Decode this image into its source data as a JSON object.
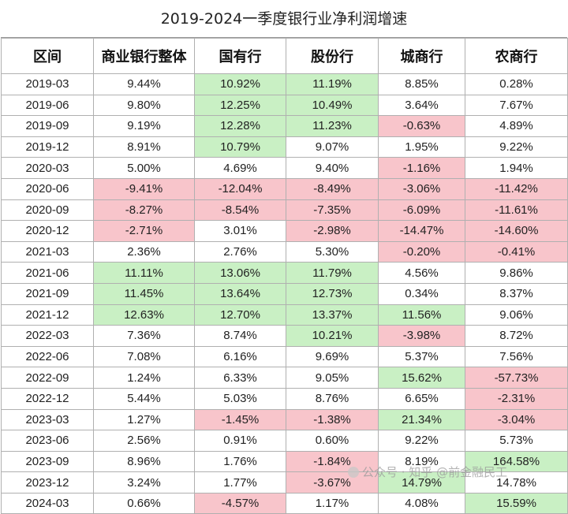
{
  "title": "2019-2024一季度银行业净利润增速",
  "headers": [
    "区间",
    "商业银行整体",
    "国有行",
    "股份行",
    "城商行",
    "农商行"
  ],
  "rows": [
    {
      "label": "2019-03",
      "cells": [
        {
          "v": "9.44%",
          "c": ""
        },
        {
          "v": "10.92%",
          "c": "g"
        },
        {
          "v": "11.19%",
          "c": "g"
        },
        {
          "v": "8.85%",
          "c": ""
        },
        {
          "v": "0.28%",
          "c": ""
        }
      ]
    },
    {
      "label": "2019-06",
      "cells": [
        {
          "v": "9.80%",
          "c": ""
        },
        {
          "v": "12.25%",
          "c": "g"
        },
        {
          "v": "10.49%",
          "c": "g"
        },
        {
          "v": "3.64%",
          "c": ""
        },
        {
          "v": "7.67%",
          "c": ""
        }
      ]
    },
    {
      "label": "2019-09",
      "cells": [
        {
          "v": "9.19%",
          "c": ""
        },
        {
          "v": "12.28%",
          "c": "g"
        },
        {
          "v": "11.23%",
          "c": "g"
        },
        {
          "v": "-0.63%",
          "c": "r"
        },
        {
          "v": "4.89%",
          "c": ""
        }
      ]
    },
    {
      "label": "2019-12",
      "cells": [
        {
          "v": "8.91%",
          "c": ""
        },
        {
          "v": "10.79%",
          "c": "g"
        },
        {
          "v": "9.07%",
          "c": ""
        },
        {
          "v": "1.95%",
          "c": ""
        },
        {
          "v": "9.22%",
          "c": ""
        }
      ]
    },
    {
      "label": "2020-03",
      "cells": [
        {
          "v": "5.00%",
          "c": ""
        },
        {
          "v": "4.69%",
          "c": ""
        },
        {
          "v": "9.40%",
          "c": ""
        },
        {
          "v": "-1.16%",
          "c": "r"
        },
        {
          "v": "1.94%",
          "c": ""
        }
      ]
    },
    {
      "label": "2020-06",
      "cells": [
        {
          "v": "-9.41%",
          "c": "r"
        },
        {
          "v": "-12.04%",
          "c": "r"
        },
        {
          "v": "-8.49%",
          "c": "r"
        },
        {
          "v": "-3.06%",
          "c": "r"
        },
        {
          "v": "-11.42%",
          "c": "r"
        }
      ]
    },
    {
      "label": "2020-09",
      "cells": [
        {
          "v": "-8.27%",
          "c": "r"
        },
        {
          "v": "-8.54%",
          "c": "r"
        },
        {
          "v": "-7.35%",
          "c": "r"
        },
        {
          "v": "-6.09%",
          "c": "r"
        },
        {
          "v": "-11.61%",
          "c": "r"
        }
      ]
    },
    {
      "label": "2020-12",
      "cells": [
        {
          "v": "-2.71%",
          "c": "r"
        },
        {
          "v": "3.01%",
          "c": ""
        },
        {
          "v": "-2.98%",
          "c": "r"
        },
        {
          "v": "-14.47%",
          "c": "r"
        },
        {
          "v": "-14.60%",
          "c": "r"
        }
      ]
    },
    {
      "label": "2021-03",
      "cells": [
        {
          "v": "2.36%",
          "c": ""
        },
        {
          "v": "2.76%",
          "c": ""
        },
        {
          "v": "5.30%",
          "c": ""
        },
        {
          "v": "-0.20%",
          "c": "r"
        },
        {
          "v": "-0.41%",
          "c": "r"
        }
      ]
    },
    {
      "label": "2021-06",
      "cells": [
        {
          "v": "11.11%",
          "c": "g"
        },
        {
          "v": "13.06%",
          "c": "g"
        },
        {
          "v": "11.79%",
          "c": "g"
        },
        {
          "v": "4.56%",
          "c": ""
        },
        {
          "v": "9.86%",
          "c": ""
        }
      ]
    },
    {
      "label": "2021-09",
      "cells": [
        {
          "v": "11.45%",
          "c": "g"
        },
        {
          "v": "13.64%",
          "c": "g"
        },
        {
          "v": "12.73%",
          "c": "g"
        },
        {
          "v": "0.34%",
          "c": ""
        },
        {
          "v": "8.37%",
          "c": ""
        }
      ]
    },
    {
      "label": "2021-12",
      "cells": [
        {
          "v": "12.63%",
          "c": "g"
        },
        {
          "v": "12.70%",
          "c": "g"
        },
        {
          "v": "13.37%",
          "c": "g"
        },
        {
          "v": "11.56%",
          "c": "g"
        },
        {
          "v": "9.06%",
          "c": ""
        }
      ]
    },
    {
      "label": "2022-03",
      "cells": [
        {
          "v": "7.36%",
          "c": ""
        },
        {
          "v": "8.74%",
          "c": ""
        },
        {
          "v": "10.21%",
          "c": "g"
        },
        {
          "v": "-3.98%",
          "c": "r"
        },
        {
          "v": "8.72%",
          "c": ""
        }
      ]
    },
    {
      "label": "2022-06",
      "cells": [
        {
          "v": "7.08%",
          "c": ""
        },
        {
          "v": "6.16%",
          "c": ""
        },
        {
          "v": "9.69%",
          "c": ""
        },
        {
          "v": "5.37%",
          "c": ""
        },
        {
          "v": "7.56%",
          "c": ""
        }
      ]
    },
    {
      "label": "2022-09",
      "cells": [
        {
          "v": "1.24%",
          "c": ""
        },
        {
          "v": "6.33%",
          "c": ""
        },
        {
          "v": "9.05%",
          "c": ""
        },
        {
          "v": "15.62%",
          "c": "g"
        },
        {
          "v": "-57.73%",
          "c": "r"
        }
      ]
    },
    {
      "label": "2022-12",
      "cells": [
        {
          "v": "5.44%",
          "c": ""
        },
        {
          "v": "5.03%",
          "c": ""
        },
        {
          "v": "8.76%",
          "c": ""
        },
        {
          "v": "6.65%",
          "c": ""
        },
        {
          "v": "-2.31%",
          "c": "r"
        }
      ]
    },
    {
      "label": "2023-03",
      "cells": [
        {
          "v": "1.27%",
          "c": ""
        },
        {
          "v": "-1.45%",
          "c": "r"
        },
        {
          "v": "-1.38%",
          "c": "r"
        },
        {
          "v": "21.34%",
          "c": "g"
        },
        {
          "v": "-3.04%",
          "c": "r"
        }
      ]
    },
    {
      "label": "2023-06",
      "cells": [
        {
          "v": "2.56%",
          "c": ""
        },
        {
          "v": "0.91%",
          "c": ""
        },
        {
          "v": "0.60%",
          "c": ""
        },
        {
          "v": "9.22%",
          "c": ""
        },
        {
          "v": "5.73%",
          "c": ""
        }
      ]
    },
    {
      "label": "2023-09",
      "cells": [
        {
          "v": "8.96%",
          "c": ""
        },
        {
          "v": "1.76%",
          "c": ""
        },
        {
          "v": "-1.84%",
          "c": "r"
        },
        {
          "v": "8.19%",
          "c": ""
        },
        {
          "v": "164.58%",
          "c": "g"
        }
      ]
    },
    {
      "label": "2023-12",
      "cells": [
        {
          "v": "3.24%",
          "c": ""
        },
        {
          "v": "1.77%",
          "c": ""
        },
        {
          "v": "-3.67%",
          "c": "r"
        },
        {
          "v": "14.79%",
          "c": "g"
        },
        {
          "v": "14.78%",
          "c": ""
        }
      ]
    },
    {
      "label": "2024-03",
      "cells": [
        {
          "v": "0.66%",
          "c": ""
        },
        {
          "v": "-4.57%",
          "c": "r"
        },
        {
          "v": "1.17%",
          "c": ""
        },
        {
          "v": "4.08%",
          "c": ""
        },
        {
          "v": "15.59%",
          "c": "g"
        }
      ]
    }
  ],
  "watermark": "公众号 · 知乎 @前金融民工",
  "colors": {
    "positive_highlight": "#c9f0c4",
    "negative_highlight": "#f8c5cb",
    "border": "#b0b0b0"
  }
}
